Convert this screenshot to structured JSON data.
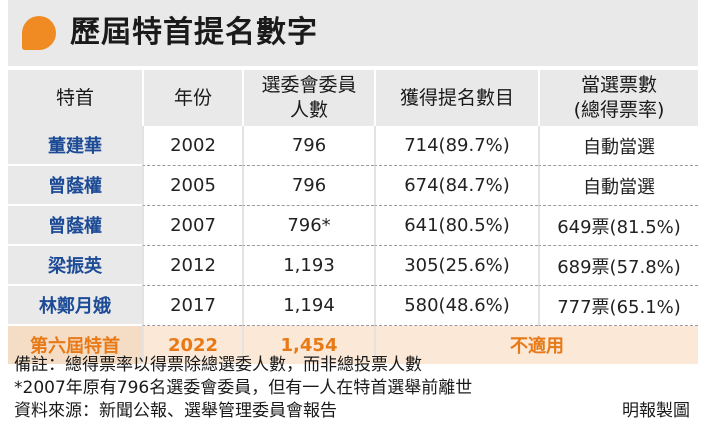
{
  "title": "歷屆特首提名數字",
  "table": {
    "headers": [
      "特首",
      "年份",
      "選委會委員\n人數",
      "獲得提名數目",
      "當選票數\n(總得票率)"
    ],
    "rows": [
      {
        "name": "董建華",
        "year": "2002",
        "members": "796",
        "nominations": "714(89.7%)",
        "votes": "自動當選"
      },
      {
        "name": "曾蔭權",
        "year": "2005",
        "members": "796",
        "nominations": "674(84.7%)",
        "votes": "自動當選"
      },
      {
        "name": "曾蔭權",
        "year": "2007",
        "members": "796*",
        "nominations": "641(80.5%)",
        "votes": "649票(81.5%)"
      },
      {
        "name": "梁振英",
        "year": "2012",
        "members": "1,193",
        "nominations": "305(25.6%)",
        "votes": "689票(57.8%)"
      },
      {
        "name": "林鄭月娥",
        "year": "2017",
        "members": "1,194",
        "nominations": "580(48.6%)",
        "votes": "777票(65.1%)"
      }
    ],
    "highlight_row": {
      "name": "第六屆特首",
      "year": "2022",
      "members": "1,454",
      "na": "不適用"
    }
  },
  "notes": {
    "remark": "備註：總得票率以得票除總選委人數，而非總投票人數",
    "footnote": "*2007年原有796名選委會委員，但有一人在特首選舉前離世",
    "source": "資料來源：新聞公報、選舉管理委員會報告",
    "credit": "明報製圖"
  },
  "colors": {
    "accent": "#f08a22",
    "name_text": "#1d4b96",
    "highlight_text": "#e77a17",
    "header_bg": "#e9e9e9",
    "highlight_bg": "#fbe8d7"
  }
}
